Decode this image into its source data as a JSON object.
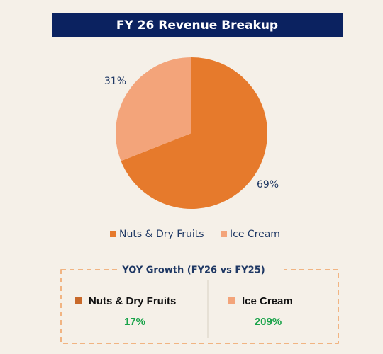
{
  "chart_data": {
    "type": "pie",
    "title": "FY 26 Revenue Breakup",
    "categories": [
      "Nuts & Dry Fruits",
      "Ice Cream"
    ],
    "values": [
      69,
      31
    ],
    "value_labels": [
      "69%",
      "31%"
    ],
    "colors": [
      "#e67a2c",
      "#f3a47a"
    ]
  },
  "yoy_growth": {
    "title": "YOY Growth (FY26 vs FY25)",
    "items": [
      {
        "name": "Nuts & Dry Fruits",
        "growth": "17%",
        "color": "#c8692a"
      },
      {
        "name": "Ice Cream",
        "growth": "209%",
        "color": "#f3a47a"
      }
    ]
  }
}
